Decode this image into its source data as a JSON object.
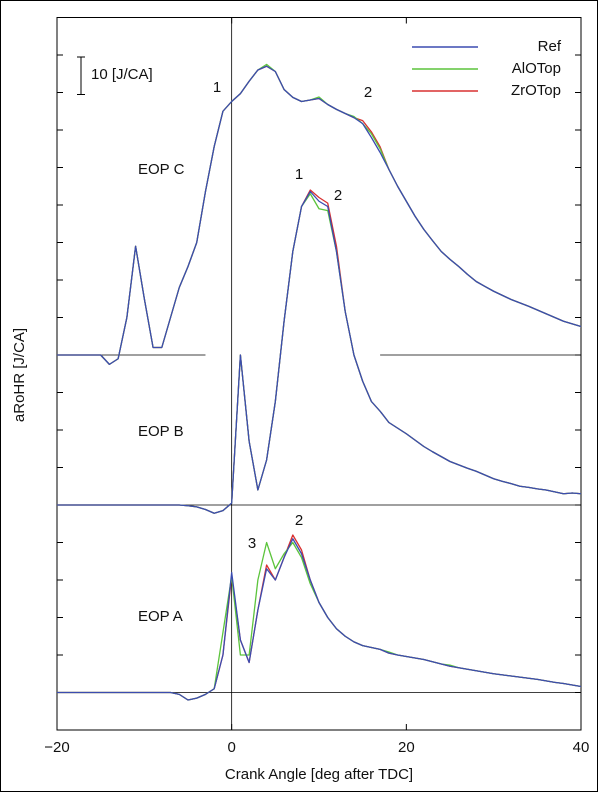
{
  "chart_data": {
    "type": "line",
    "x_label": "Crank Angle [deg after TDC]",
    "y_label": "aRoHR [J/CA]",
    "xlim": [
      -20,
      40
    ],
    "xticks": [
      {
        "value": -20,
        "label": "−20"
      },
      0,
      20,
      40
    ],
    "ylim": [
      -10,
      180
    ],
    "yticks": [
      0,
      10,
      20,
      30,
      40,
      50,
      60,
      70,
      80,
      90,
      100,
      110,
      120,
      130,
      140,
      150,
      160,
      170
    ],
    "vline": 0,
    "hlines": [
      {
        "y": 0
      },
      {
        "y": 50
      },
      {
        "y": 90,
        "gap": [
          -3,
          17
        ]
      }
    ],
    "scale_bar": {
      "label": "10 [J/CA]",
      "length": 10
    },
    "legend": "upper right",
    "annotations": [
      "EOP C",
      "EOP B",
      "EOP A",
      "1",
      "2",
      "1",
      "2",
      "3",
      "2"
    ],
    "x": [
      -20,
      -19,
      -18,
      -17,
      -16,
      -15,
      -14,
      -13,
      -12,
      -11,
      -10,
      -9,
      -8,
      -7,
      -6,
      -5,
      -4,
      -3,
      -2,
      -1,
      0,
      1,
      2,
      3,
      4,
      5,
      6,
      7,
      8,
      9,
      10,
      11,
      12,
      13,
      14,
      15,
      16,
      17,
      18,
      19,
      20,
      21,
      22,
      23,
      24,
      25,
      26,
      27,
      28,
      29,
      30,
      31,
      32,
      33,
      34,
      35,
      36,
      37,
      38,
      39,
      40,
      null,
      -20,
      -19,
      -18,
      -17,
      -16,
      -15,
      -14,
      -13,
      -12,
      -11,
      -10,
      -9,
      -8,
      -7,
      -6,
      -5,
      -4,
      -3,
      -2,
      -1,
      0,
      1,
      2,
      3,
      4,
      5,
      6,
      7,
      8,
      9,
      10,
      11,
      12,
      13,
      14,
      15,
      16,
      17,
      18,
      19,
      20,
      21,
      22,
      23,
      24,
      25,
      26,
      27,
      28,
      29,
      30,
      31,
      32,
      33,
      34,
      35,
      36,
      37,
      38,
      39,
      40,
      null,
      -20,
      -19,
      -18,
      -17,
      -16,
      -15,
      -14,
      -13,
      -12,
      -11,
      -10,
      -9,
      -8,
      -7,
      -6,
      -5,
      -4,
      -3,
      -2,
      -1,
      0,
      1,
      2,
      3,
      4,
      5,
      6,
      7,
      8,
      9,
      10,
      11,
      12,
      13,
      14,
      15,
      16,
      17,
      18,
      19,
      20,
      21,
      22,
      23,
      24,
      25,
      26,
      27,
      28,
      29,
      30,
      31,
      32,
      33,
      34,
      35,
      36,
      37,
      38,
      39,
      40
    ],
    "series": [
      {
        "name": "Ref",
        "color": "#3b4cb0",
        "values": [
          0,
          0,
          0,
          0,
          0,
          0,
          0,
          0,
          0,
          0,
          0,
          0,
          0,
          0,
          -0.5,
          -2,
          -1.5,
          -0.5,
          1,
          10,
          32,
          14,
          8,
          22,
          33,
          30,
          36,
          41,
          37,
          30,
          24,
          20,
          17,
          15,
          13.5,
          12.5,
          12,
          11.5,
          10.5,
          10,
          9.6,
          9.2,
          8.8,
          8.2,
          7.6,
          7,
          6.6,
          6.2,
          5.8,
          5.4,
          5,
          4.7,
          4.4,
          4.1,
          3.8,
          3.5,
          3.1,
          2.7,
          2.4,
          2,
          1.6,
          null,
          50,
          50,
          50,
          50,
          50,
          50,
          50,
          50,
          50,
          50,
          50,
          50,
          50,
          50,
          50,
          49.8,
          49.5,
          48.8,
          47.8,
          48.5,
          50.5,
          90,
          67,
          54,
          62,
          77.6,
          99,
          117.6,
          129.6,
          133.6,
          131,
          129.6,
          117.6,
          101.6,
          90,
          83,
          77.6,
          75,
          72,
          70.5,
          69,
          67.3,
          65.6,
          64.2,
          62.9,
          61.6,
          60.7,
          59.8,
          59,
          58,
          57,
          56.3,
          55.7,
          55,
          54.7,
          54.3,
          54,
          53.5,
          53,
          53.2,
          53,
          null,
          90,
          90,
          90,
          90,
          90,
          90,
          87.5,
          89,
          100,
          119,
          105,
          92,
          92,
          100,
          108,
          113.6,
          120,
          133.6,
          145.6,
          155,
          157.6,
          159.7,
          163,
          166,
          167,
          165.6,
          160.8,
          158.7,
          157.6,
          158,
          158.4,
          156.8,
          155.5,
          154.4,
          153.3,
          151.7,
          148,
          144,
          139.5,
          135,
          131,
          127,
          123.5,
          120.5,
          117.6,
          115.5,
          113.6,
          111.5,
          109.6,
          108.3,
          107,
          105.9,
          104.8,
          103.9,
          103,
          102,
          101,
          100,
          99,
          98.3,
          97.6
        ]
      },
      {
        "name": "AlOTop",
        "color": "#5cc43c",
        "values": [
          0,
          0,
          0,
          0,
          0,
          0,
          0,
          0,
          0,
          0,
          0,
          0,
          0,
          0,
          -0.5,
          -2,
          -1.5,
          -0.5,
          1,
          16,
          31,
          10,
          10,
          30,
          40,
          33,
          37,
          40,
          36,
          29,
          24,
          20,
          17,
          15,
          13.5,
          12.5,
          12,
          11.5,
          10.8,
          10,
          9.6,
          9.2,
          8.8,
          8.2,
          7.6,
          7.3,
          6.6,
          6.2,
          5.8,
          5.4,
          5,
          4.7,
          4.4,
          4.1,
          3.8,
          3.5,
          3.1,
          2.7,
          2.4,
          2,
          1.6,
          null,
          50,
          50,
          50,
          50,
          50,
          50,
          50,
          50,
          50,
          50,
          50,
          50,
          50,
          50,
          50,
          49.8,
          49.5,
          48.8,
          47.8,
          48.5,
          50.5,
          90,
          67,
          54,
          62,
          77.6,
          99,
          117.6,
          129.6,
          133,
          129,
          128.5,
          117.6,
          101.6,
          90,
          83,
          77.6,
          75,
          72,
          70.5,
          69,
          67.3,
          65.6,
          64.2,
          62.9,
          61.6,
          60.7,
          59.8,
          59,
          58,
          57,
          56.3,
          55.7,
          55,
          54.7,
          54.3,
          54,
          53.5,
          53,
          53.2,
          53,
          null,
          90,
          90,
          90,
          90,
          90,
          90,
          87.5,
          89,
          100,
          119,
          105,
          92,
          92,
          100,
          108,
          113.6,
          120,
          133.6,
          145.6,
          155,
          157.6,
          159.7,
          163,
          166,
          167.5,
          165.6,
          160.8,
          158.7,
          157.6,
          158,
          158.8,
          156.8,
          155.5,
          154.4,
          153.6,
          151.7,
          149,
          145,
          139.5,
          135,
          131,
          127,
          123.5,
          120.5,
          117.6,
          115.5,
          113.6,
          111.5,
          109.6,
          108.3,
          107,
          105.9,
          104.8,
          103.9,
          103,
          102,
          101,
          100,
          99,
          98.3,
          97.6
        ]
      },
      {
        "name": "ZrOTop",
        "color": "#d93030",
        "values": [
          0,
          0,
          0,
          0,
          0,
          0,
          0,
          0,
          0,
          0,
          0,
          0,
          0,
          0,
          -0.5,
          -2,
          -1.5,
          -0.5,
          1,
          10,
          31,
          14,
          8,
          22,
          34,
          30,
          36,
          42,
          38,
          30,
          24,
          20,
          17,
          15,
          13.5,
          12.5,
          12,
          11.5,
          10.5,
          10,
          9.6,
          9.2,
          8.8,
          8.2,
          7.6,
          7,
          6.6,
          6.2,
          5.8,
          5.4,
          5,
          4.7,
          4.4,
          4.1,
          3.8,
          3.5,
          3.1,
          2.7,
          2.4,
          2,
          1.6,
          null,
          50,
          50,
          50,
          50,
          50,
          50,
          50,
          50,
          50,
          50,
          50,
          50,
          50,
          50,
          50,
          49.8,
          49.5,
          48.8,
          47.8,
          48.5,
          50.5,
          90,
          67,
          54,
          62,
          77.6,
          99,
          117.6,
          129.6,
          134,
          132,
          130.5,
          119,
          101.6,
          90,
          83,
          77.6,
          75,
          72,
          70.5,
          69,
          67.3,
          65.6,
          64.2,
          62.9,
          61.6,
          60.7,
          59.8,
          59,
          58,
          57,
          56.3,
          55.7,
          55,
          54.7,
          54.3,
          54,
          53.5,
          53,
          53.2,
          53,
          null,
          90,
          90,
          90,
          90,
          90,
          90,
          87.5,
          89,
          100,
          119,
          105,
          92,
          92,
          100,
          108,
          113.6,
          120,
          133.6,
          145.6,
          155,
          157.6,
          159.7,
          163,
          166,
          167,
          165.6,
          160.8,
          158.7,
          157.6,
          158,
          158.4,
          156.8,
          155.5,
          154.4,
          153.3,
          152.5,
          149.5,
          145.5,
          139.5,
          135,
          131,
          127,
          123.5,
          120.5,
          117.6,
          115.5,
          113.6,
          111.5,
          109.6,
          108.3,
          107,
          105.9,
          104.8,
          103.9,
          103,
          102,
          101,
          100,
          99,
          98.3,
          97.6
        ]
      }
    ]
  }
}
